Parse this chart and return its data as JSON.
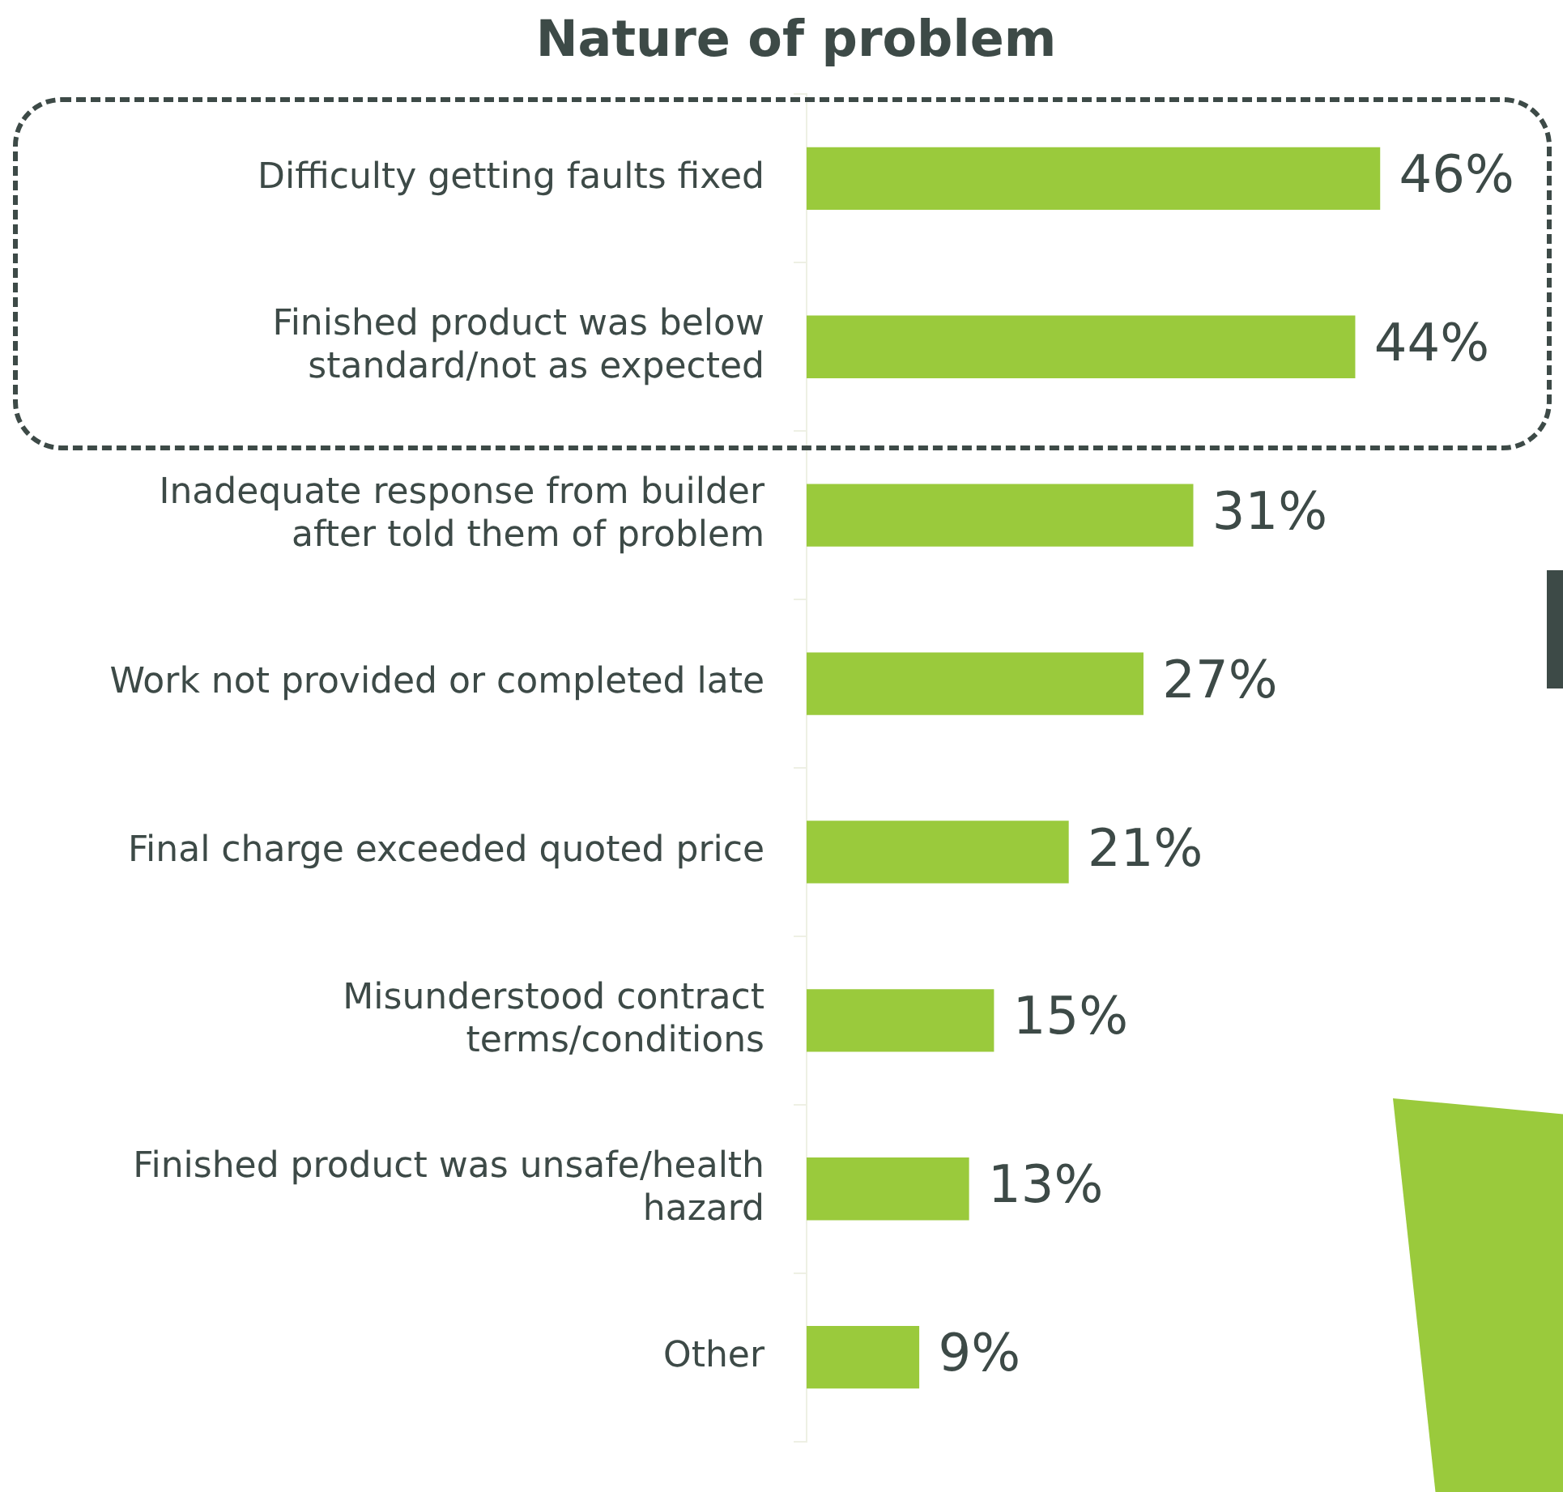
{
  "chart_data": {
    "type": "bar",
    "orientation": "horizontal",
    "title": "Nature of problem",
    "categories": [
      "Difficulty getting faults fixed",
      "Finished product was below standard/not as expected",
      "Inadequate response from builder after told them of problem",
      "Work not provided or completed late",
      "Final charge exceeded quoted price",
      "Misunderstood contract terms/conditions",
      "Finished product was unsafe/health hazard",
      "Other"
    ],
    "values": [
      46,
      44,
      31,
      27,
      21,
      15,
      13,
      9
    ],
    "value_labels": [
      "46%",
      "44%",
      "31%",
      "27%",
      "21%",
      "15%",
      "13%",
      "9%"
    ],
    "color": "#9aca3c",
    "tick_labels": "y",
    "legend": false
  }
}
